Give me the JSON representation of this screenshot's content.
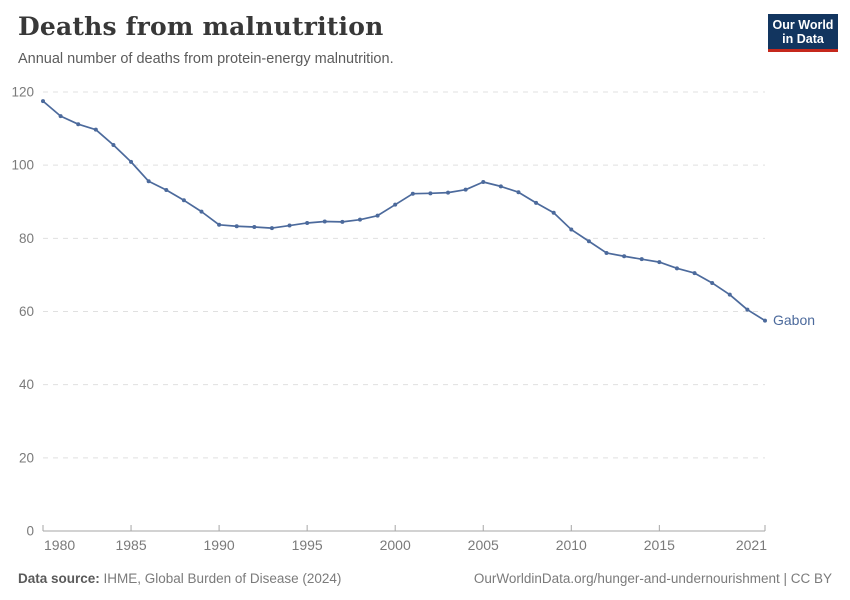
{
  "header": {
    "title": "Deaths from malnutrition",
    "subtitle": "Annual number of deaths from protein-energy malnutrition."
  },
  "logo": {
    "line1": "Our World",
    "line2": "in Data",
    "bg_color": "#12355f",
    "accent_color": "#c5281c"
  },
  "chart_data": {
    "type": "line",
    "title": "Deaths from malnutrition",
    "subtitle": "Annual number of deaths from protein-energy malnutrition.",
    "xlabel": "",
    "ylabel": "",
    "ylim": [
      0,
      120
    ],
    "yticks": [
      0,
      20,
      40,
      60,
      80,
      100,
      120
    ],
    "xticks": [
      1980,
      1985,
      1990,
      1995,
      2000,
      2005,
      2010,
      2015,
      2021
    ],
    "grid": "dashed-horizontal",
    "legend_position": "end-of-line-label",
    "x": [
      1980,
      1981,
      1982,
      1983,
      1984,
      1985,
      1986,
      1987,
      1988,
      1989,
      1990,
      1991,
      1992,
      1993,
      1994,
      1995,
      1996,
      1997,
      1998,
      1999,
      2000,
      2001,
      2002,
      2003,
      2004,
      2005,
      2006,
      2007,
      2008,
      2009,
      2010,
      2011,
      2012,
      2013,
      2014,
      2015,
      2016,
      2017,
      2018,
      2019,
      2020,
      2021
    ],
    "series": [
      {
        "name": "Gabon",
        "color": "#4c6a9c",
        "values": [
          117.5,
          113.4,
          111.2,
          109.7,
          105.5,
          100.9,
          95.6,
          93.2,
          90.4,
          87.3,
          83.7,
          83.3,
          83.1,
          82.8,
          83.5,
          84.2,
          84.6,
          84.5,
          85.1,
          86.2,
          89.2,
          92.2,
          92.3,
          92.5,
          93.3,
          95.4,
          94.2,
          92.6,
          89.7,
          87.0,
          82.4,
          79.2,
          76.0,
          75.1,
          74.3,
          73.5,
          71.8,
          70.5,
          67.8,
          64.6,
          60.5,
          57.5
        ]
      }
    ],
    "axis_color": "#a6a6a6",
    "gridline_color": "#e0e0e0",
    "tick_label_color": "#7a7a7a"
  },
  "footer": {
    "source_label": "Data source:",
    "source_text": " IHME, Global Burden of Disease (2024)",
    "link_text": "OurWorldinData.org/hunger-and-undernourishment | CC BY"
  }
}
